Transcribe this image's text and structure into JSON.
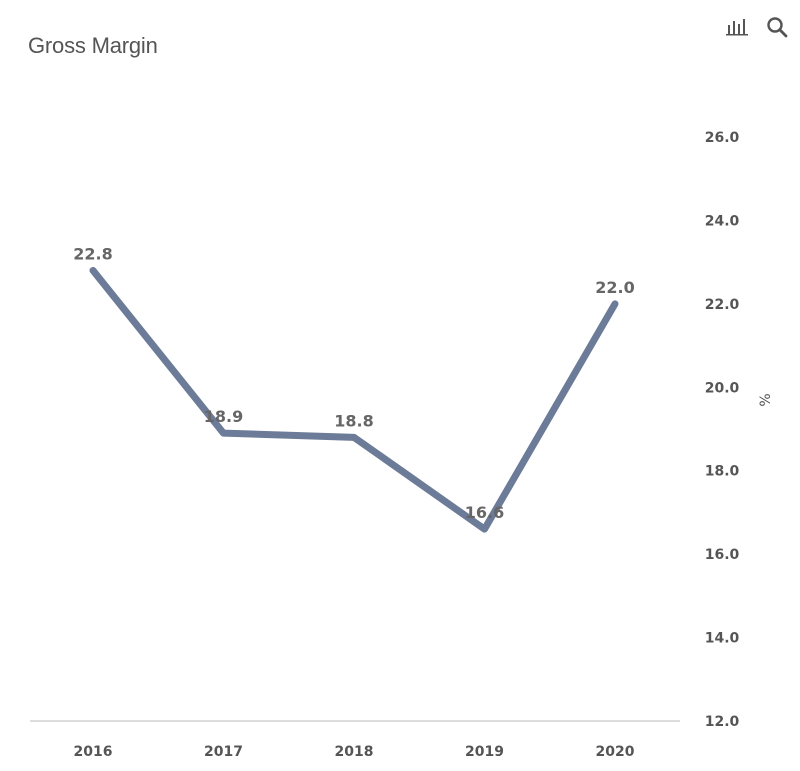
{
  "toolbar": {
    "chart_icon": "bar-chart-icon",
    "search_icon": "search-icon"
  },
  "colors": {
    "line": "#6b7b98",
    "axis": "#dddddd",
    "text": "#555555"
  },
  "chart_data": {
    "type": "line",
    "title": "Gross Margin",
    "categories": [
      "2016",
      "2017",
      "2018",
      "2019",
      "2020"
    ],
    "series": [
      {
        "values": [
          22.8,
          18.9,
          18.8,
          16.6,
          22.0
        ]
      }
    ],
    "data_labels": [
      "22.8",
      "18.9",
      "18.8",
      "16.6",
      "22.0"
    ],
    "y_ticks": [
      "12.0",
      "14.0",
      "16.0",
      "18.0",
      "20.0",
      "22.0",
      "24.0",
      "26.0"
    ],
    "ylabel": "%",
    "ylim": [
      12,
      26
    ],
    "y_axis_position": "right",
    "grid": false,
    "legend": false
  }
}
